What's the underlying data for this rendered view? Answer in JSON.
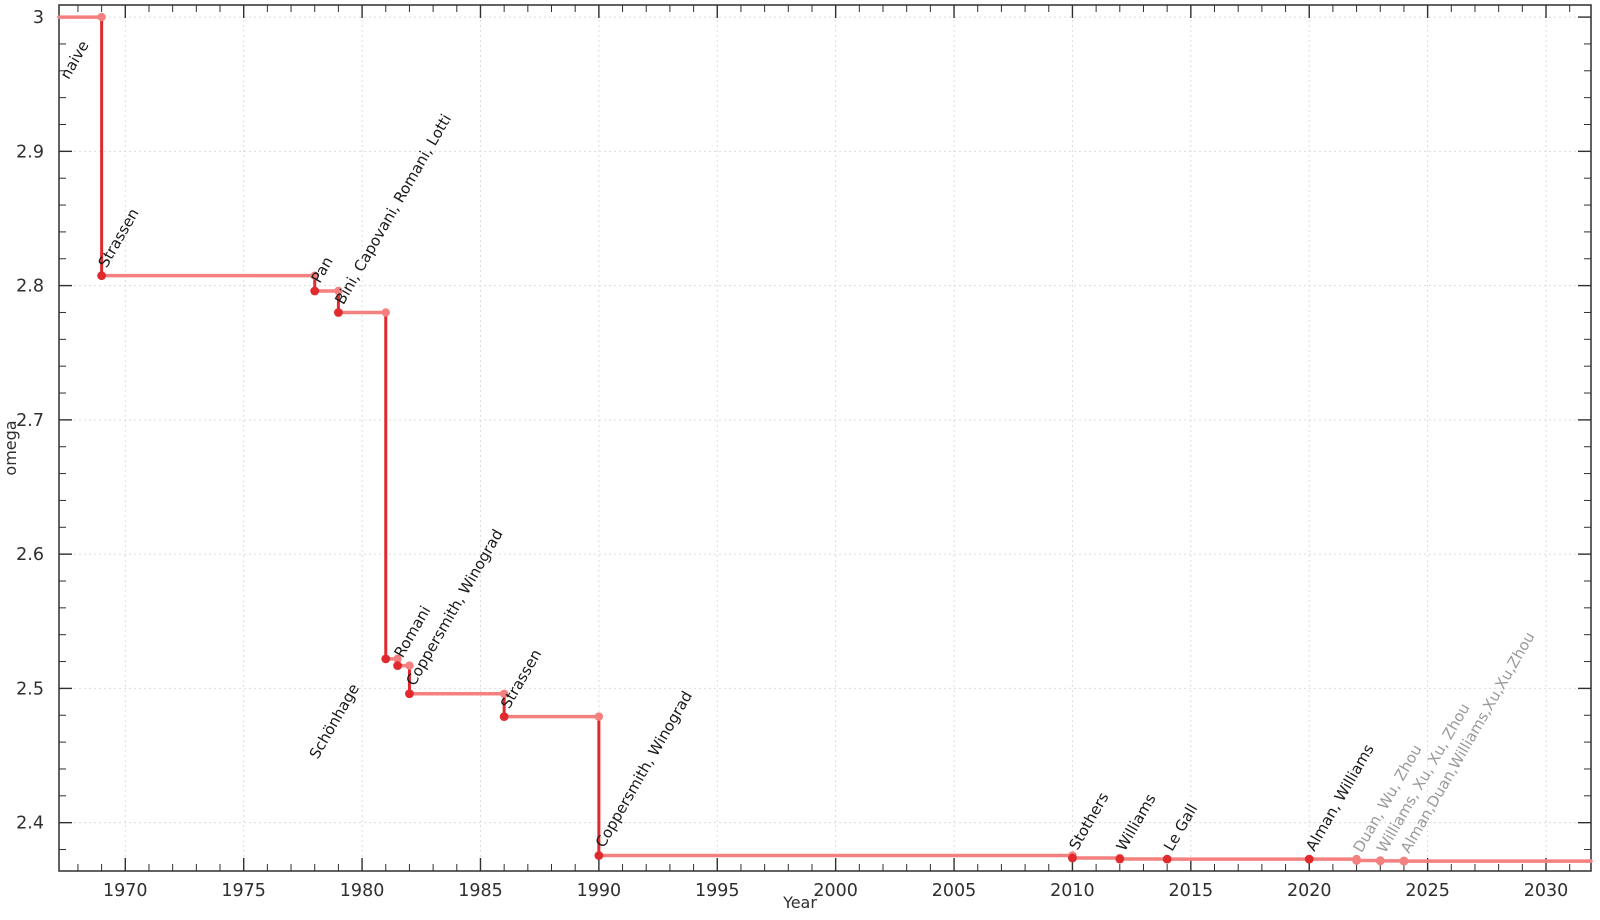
{
  "chart_data": {
    "type": "line",
    "subtype": "step-post",
    "title": "",
    "xlabel": "Year",
    "ylabel": "omega",
    "xlim": [
      1967.2,
      2031.9
    ],
    "ylim": [
      2.364,
      3.009
    ],
    "x_major_ticks": [
      1970,
      1975,
      1980,
      1985,
      1990,
      1995,
      2000,
      2005,
      2010,
      2015,
      2020,
      2025,
      2030
    ],
    "x_major_tick_labels": [
      "1970",
      "1975",
      "1980",
      "1985",
      "1990",
      "1995",
      "2000",
      "2005",
      "2010",
      "2015",
      "2020",
      "2025",
      "2030"
    ],
    "x_minor_tick_step": 1,
    "y_major_ticks": [
      2.4,
      2.5,
      2.6,
      2.7,
      2.8,
      2.9,
      3
    ],
    "y_major_tick_labels": [
      "2.4",
      "2.5",
      "2.6",
      "2.7",
      "2.8",
      "2.9",
      "3"
    ],
    "y_minor_tick_step": 0.02,
    "grid": "major-only-dotted",
    "legend": "none",
    "initial": {
      "label": "naive",
      "omega": 3.0,
      "from_year": 1967.2,
      "label_placement": "lower-left",
      "label_offset": [
        -33,
        63
      ]
    },
    "events": [
      {
        "year": 1969,
        "omega": 2.8074,
        "label": "Strassen"
      },
      {
        "year": 1978,
        "omega": 2.796,
        "label": "Pan"
      },
      {
        "year": 1979,
        "omega": 2.78,
        "label": "Bini, Capovani, Romani, Lotti"
      },
      {
        "year": 1981,
        "omega": 2.522,
        "label": "Schönhage",
        "label_placement": "lower-left",
        "label_offset": [
          -68,
          101
        ]
      },
      {
        "year": 1981.5,
        "omega": 2.517,
        "label": "Romani"
      },
      {
        "year": 1982,
        "omega": 2.496,
        "label": "Coppersmith, Winograd"
      },
      {
        "year": 1986,
        "omega": 2.479,
        "label": "Strassen"
      },
      {
        "year": 1990,
        "omega": 2.3755,
        "label": "Coppersmith, Winograd"
      },
      {
        "year": 2010,
        "omega": 2.3737,
        "label": "Stothers"
      },
      {
        "year": 2012,
        "omega": 2.3729,
        "label": "Williams"
      },
      {
        "year": 2014,
        "omega": 2.37287,
        "label": "Le Gall"
      },
      {
        "year": 2020,
        "omega": 2.37286,
        "label": "Alman, Williams"
      },
      {
        "year": 2022,
        "omega": 2.371866,
        "label": "Duan, Wu, Zhou",
        "recent": true
      },
      {
        "year": 2023,
        "omega": 2.371552,
        "label": "Williams, Xu, Xu, Zhou",
        "recent": true
      },
      {
        "year": 2024,
        "omega": 2.371339,
        "label": "Alman,Duan,Williams,Xu,Xu,Zhou",
        "recent": true
      }
    ],
    "line_end_year": 2031.9,
    "annotation_rotation_deg": 60,
    "colors": {
      "drop_line": "#e02a2e",
      "plateau_line": "#f4817f",
      "marker_bound": "#e02a2e",
      "marker_superseded": "#f4817f",
      "label_text": "#1a1a1a",
      "label_text_recent": "#9a9a9a",
      "grid_line": "#dcdcdc",
      "axis_frame": "#2f2f2f",
      "tick_label": "#2f2f2f"
    }
  }
}
